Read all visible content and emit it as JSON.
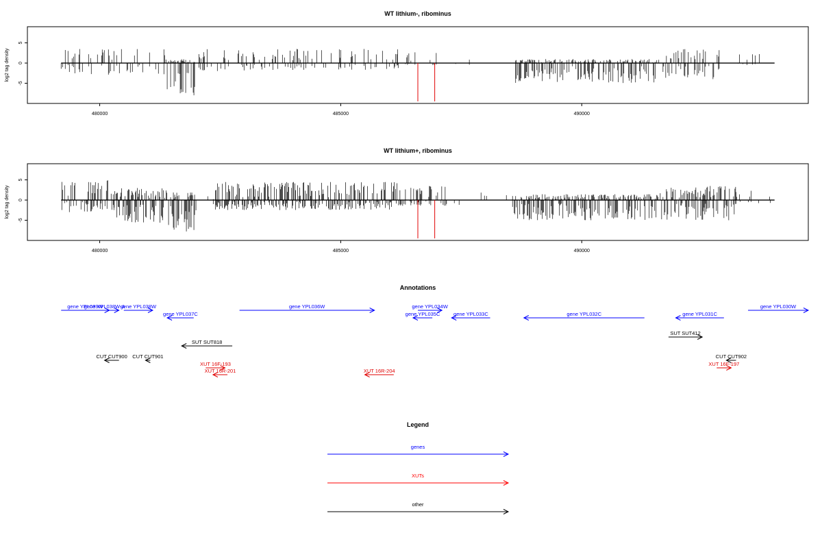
{
  "chart_data": [
    {
      "type": "bar",
      "title": "WT lithium-, ribominus",
      "ylabel": "log2 tag density",
      "xlim": [
        478500,
        494700
      ],
      "ylim": [
        -10,
        9
      ],
      "xticks": [
        480000,
        485000,
        490000
      ],
      "yticks": [
        -5,
        0,
        5
      ],
      "xtick_labels": [
        "480000",
        "485000",
        "490000"
      ],
      "ytick_labels": [
        "-5",
        "0",
        "5"
      ],
      "grid": false,
      "density_regions": [
        {
          "from": 479200,
          "to": 481400,
          "pos_max": 3.5,
          "neg_max": 3,
          "density": 0.35
        },
        {
          "from": 481400,
          "to": 482000,
          "pos_max": 1,
          "neg_max": 8,
          "density": 1.0
        },
        {
          "from": 482000,
          "to": 486200,
          "pos_max": 3.5,
          "neg_max": 2,
          "density": 0.45
        },
        {
          "from": 486200,
          "to": 487000,
          "pos_max": 3,
          "neg_max": 0.5,
          "density": 0.2
        },
        {
          "from": 487000,
          "to": 488600,
          "pos_max": 1,
          "neg_max": 0.5,
          "density": 0.05
        },
        {
          "from": 488600,
          "to": 491600,
          "pos_max": 1,
          "neg_max": 5,
          "density": 0.85
        },
        {
          "from": 491600,
          "to": 493000,
          "pos_max": 3.5,
          "neg_max": 4,
          "density": 0.5
        },
        {
          "from": 493000,
          "to": 494000,
          "pos_max": 2.5,
          "neg_max": 0.5,
          "density": 0.1
        }
      ],
      "highlight_lines": [
        486600,
        486950
      ],
      "highlight_color": "#e00000"
    },
    {
      "type": "bar",
      "title": "WT lithium+, ribominus",
      "ylabel": "log2 tag density",
      "xlim": [
        478500,
        494700
      ],
      "ylim": [
        -10,
        9
      ],
      "xticks": [
        480000,
        485000,
        490000
      ],
      "yticks": [
        -5,
        0,
        5
      ],
      "xtick_labels": [
        "480000",
        "485000",
        "490000"
      ],
      "ytick_labels": [
        "-5",
        "0",
        "5"
      ],
      "grid": false,
      "density_regions": [
        {
          "from": 479200,
          "to": 480300,
          "pos_max": 5,
          "neg_max": 3,
          "density": 0.8
        },
        {
          "from": 480300,
          "to": 481400,
          "pos_max": 3,
          "neg_max": 6,
          "density": 1.0
        },
        {
          "from": 481400,
          "to": 482000,
          "pos_max": 2,
          "neg_max": 8,
          "density": 1.0
        },
        {
          "from": 482000,
          "to": 482400,
          "pos_max": 1,
          "neg_max": 1,
          "density": 0.1
        },
        {
          "from": 482400,
          "to": 486200,
          "pos_max": 4.5,
          "neg_max": 2.5,
          "density": 0.9
        },
        {
          "from": 486200,
          "to": 487200,
          "pos_max": 4,
          "neg_max": 1.5,
          "density": 0.6
        },
        {
          "from": 487200,
          "to": 488600,
          "pos_max": 2,
          "neg_max": 2,
          "density": 0.15
        },
        {
          "from": 488600,
          "to": 491600,
          "pos_max": 1.5,
          "neg_max": 5,
          "density": 0.95
        },
        {
          "from": 491600,
          "to": 493200,
          "pos_max": 3.5,
          "neg_max": 5,
          "density": 0.8
        },
        {
          "from": 493200,
          "to": 494000,
          "pos_max": 2.5,
          "neg_max": 1,
          "density": 0.25
        }
      ],
      "highlight_lines": [
        486600,
        486950
      ],
      "highlight_color": "#e00000"
    }
  ],
  "annotations": {
    "title": "Annotations",
    "items": [
      {
        "label": "gene YPL039W",
        "from": 479200,
        "to": 480200,
        "dir": "right",
        "row": 0,
        "kind": "gene"
      },
      {
        "label": "gene YPL038W-A",
        "from": 479800,
        "to": 480400,
        "dir": "right",
        "row": 0,
        "kind": "gene"
      },
      {
        "label": "gene YPL038W",
        "from": 480500,
        "to": 481100,
        "dir": "right",
        "row": 0,
        "kind": "gene"
      },
      {
        "label": "gene YPL037C",
        "from": 481400,
        "to": 481950,
        "dir": "left",
        "row": 1,
        "kind": "gene"
      },
      {
        "label": "gene YPL036W",
        "from": 482900,
        "to": 485700,
        "dir": "right",
        "row": 0,
        "kind": "gene"
      },
      {
        "label": "gene YPL034W",
        "from": 486600,
        "to": 487100,
        "dir": "right",
        "row": 0,
        "kind": "gene"
      },
      {
        "label": "gene YPL035C",
        "from": 486500,
        "to": 486900,
        "dir": "left",
        "row": 1,
        "kind": "gene"
      },
      {
        "label": "gene YPL033C",
        "from": 487300,
        "to": 488100,
        "dir": "left",
        "row": 1,
        "kind": "gene"
      },
      {
        "label": "gene YPL032C",
        "from": 488800,
        "to": 491300,
        "dir": "left",
        "row": 1,
        "kind": "gene"
      },
      {
        "label": "gene YPL031C",
        "from": 491950,
        "to": 492950,
        "dir": "left",
        "row": 1,
        "kind": "gene"
      },
      {
        "label": "gene YPL030W",
        "from": 493450,
        "to": 494700,
        "dir": "right",
        "row": 0,
        "kind": "gene"
      },
      {
        "label": "SUT SUT818",
        "from": 481700,
        "to": 482750,
        "dir": "left",
        "row": 3,
        "kind": "other"
      },
      {
        "label": "SUT SUT412",
        "from": 491800,
        "to": 492500,
        "dir": "right",
        "row": 2,
        "kind": "other"
      },
      {
        "label": "CUT CUT900",
        "from": 480100,
        "to": 480400,
        "dir": "left",
        "row": 4,
        "kind": "other"
      },
      {
        "label": "CUT CUT901",
        "from": 480950,
        "to": 481050,
        "dir": "left",
        "row": 4,
        "kind": "other"
      },
      {
        "label": "CUT CUT902",
        "from": 493000,
        "to": 493200,
        "dir": "left",
        "row": 4,
        "kind": "other"
      },
      {
        "label": "XUT 16F-193",
        "from": 482200,
        "to": 482600,
        "dir": "right",
        "row": 5,
        "kind": "xut"
      },
      {
        "label": "XUT 16R-201",
        "from": 482350,
        "to": 482650,
        "dir": "left",
        "row": 6,
        "kind": "xut"
      },
      {
        "label": "XUT 16R-204",
        "from": 485500,
        "to": 486100,
        "dir": "left",
        "row": 6,
        "kind": "xut"
      },
      {
        "label": "XUT 16F-197",
        "from": 492800,
        "to": 493100,
        "dir": "right",
        "row": 5,
        "kind": "xut"
      }
    ]
  },
  "legend": {
    "title": "Legend",
    "entries": [
      {
        "label": "genes",
        "color": "#0000ff"
      },
      {
        "label": "XUTs",
        "color": "#ff0000"
      },
      {
        "label": "other",
        "color": "#000000"
      }
    ]
  },
  "colors": {
    "gene": "#0000ff",
    "xut": "#e00000",
    "other": "#000000",
    "bar": "#000000"
  }
}
